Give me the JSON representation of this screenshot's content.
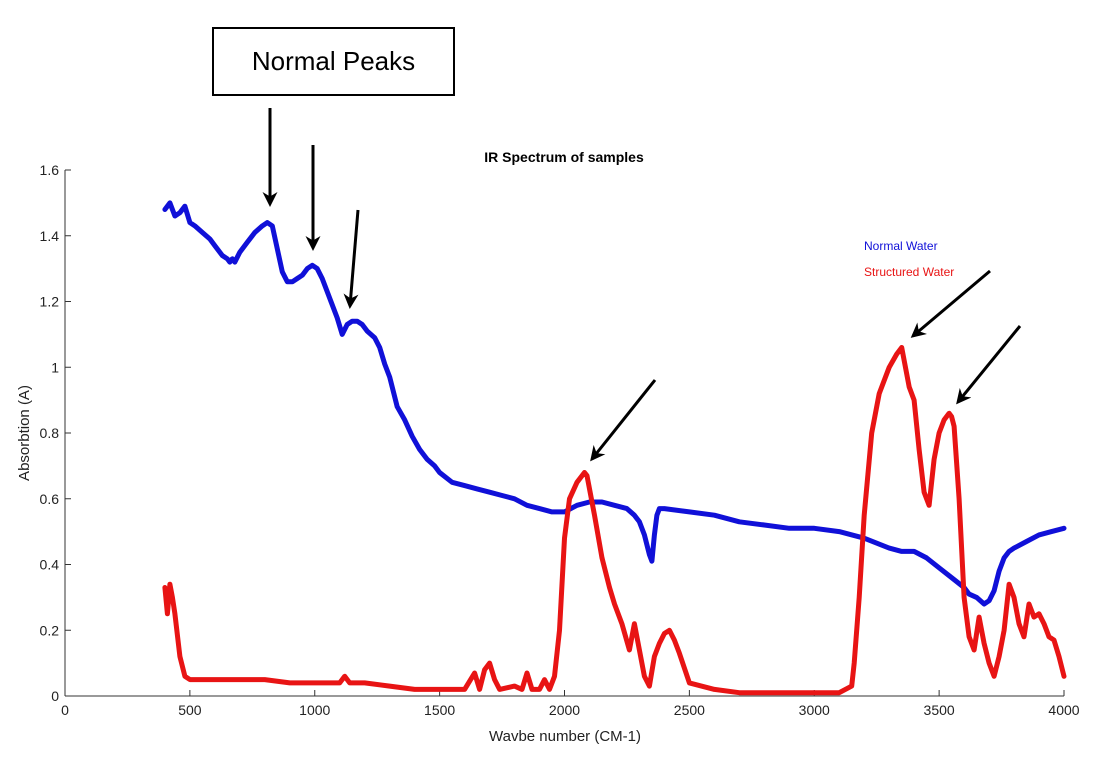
{
  "chart_data": {
    "type": "line",
    "title": "IR Spectrum of samples",
    "xlabel": "Wavbe number (CM-1)",
    "ylabel": "Absorbtion (A)",
    "xlim": [
      0,
      4000
    ],
    "ylim": [
      0,
      1.6
    ],
    "xticks": [
      "0",
      "500",
      "1000",
      "1500",
      "2000",
      "2500",
      "3000",
      "3500",
      "4000"
    ],
    "yticks": [
      "0",
      "0.2",
      "0.4",
      "0.6",
      "0.8",
      "1",
      "1.2",
      "1.4",
      "1.6"
    ],
    "grid": false,
    "legend_position": "right",
    "series": [
      {
        "name": "Normal Water",
        "color": "#1010d8",
        "x": [
          400,
          420,
          440,
          460,
          480,
          500,
          520,
          550,
          580,
          600,
          630,
          650,
          660,
          670,
          680,
          700,
          730,
          760,
          790,
          810,
          830,
          850,
          870,
          890,
          910,
          930,
          950,
          970,
          990,
          1010,
          1030,
          1050,
          1070,
          1090,
          1110,
          1130,
          1150,
          1170,
          1190,
          1210,
          1240,
          1260,
          1280,
          1300,
          1330,
          1360,
          1390,
          1420,
          1450,
          1480,
          1500,
          1550,
          1600,
          1650,
          1700,
          1750,
          1800,
          1850,
          1900,
          1950,
          2000,
          2050,
          2100,
          2150,
          2200,
          2250,
          2280,
          2300,
          2320,
          2340,
          2350,
          2360,
          2370,
          2380,
          2400,
          2500,
          2600,
          2700,
          2800,
          2900,
          3000,
          3100,
          3200,
          3300,
          3350,
          3400,
          3450,
          3500,
          3550,
          3600,
          3620,
          3650,
          3680,
          3700,
          3720,
          3740,
          3760,
          3780,
          3800,
          3850,
          3900,
          3950,
          4000
        ],
        "y": [
          1.48,
          1.5,
          1.46,
          1.47,
          1.49,
          1.44,
          1.43,
          1.41,
          1.39,
          1.37,
          1.34,
          1.33,
          1.32,
          1.33,
          1.32,
          1.35,
          1.38,
          1.41,
          1.43,
          1.44,
          1.43,
          1.36,
          1.29,
          1.26,
          1.26,
          1.27,
          1.28,
          1.3,
          1.31,
          1.3,
          1.27,
          1.23,
          1.19,
          1.15,
          1.1,
          1.13,
          1.14,
          1.14,
          1.13,
          1.11,
          1.09,
          1.06,
          1.01,
          0.97,
          0.88,
          0.84,
          0.79,
          0.75,
          0.72,
          0.7,
          0.68,
          0.65,
          0.64,
          0.63,
          0.62,
          0.61,
          0.6,
          0.58,
          0.57,
          0.56,
          0.56,
          0.58,
          0.59,
          0.59,
          0.58,
          0.57,
          0.55,
          0.53,
          0.49,
          0.43,
          0.41,
          0.49,
          0.55,
          0.57,
          0.57,
          0.56,
          0.55,
          0.53,
          0.52,
          0.51,
          0.51,
          0.5,
          0.48,
          0.45,
          0.44,
          0.44,
          0.42,
          0.39,
          0.36,
          0.33,
          0.31,
          0.3,
          0.28,
          0.29,
          0.32,
          0.38,
          0.42,
          0.44,
          0.45,
          0.47,
          0.49,
          0.5,
          0.51
        ]
      },
      {
        "name": "Structured Water",
        "color": "#e81414",
        "x": [
          400,
          410,
          420,
          430,
          440,
          460,
          480,
          500,
          550,
          600,
          700,
          800,
          900,
          1000,
          1100,
          1120,
          1140,
          1150,
          1200,
          1300,
          1400,
          1500,
          1600,
          1640,
          1660,
          1680,
          1700,
          1720,
          1740,
          1800,
          1830,
          1850,
          1870,
          1900,
          1920,
          1940,
          1960,
          1980,
          2000,
          2020,
          2050,
          2080,
          2090,
          2100,
          2120,
          2150,
          2180,
          2200,
          2230,
          2260,
          2280,
          2300,
          2320,
          2340,
          2360,
          2380,
          2400,
          2420,
          2440,
          2460,
          2500,
          2600,
          2700,
          2800,
          2900,
          3000,
          3100,
          3150,
          3160,
          3180,
          3200,
          3230,
          3260,
          3300,
          3330,
          3350,
          3360,
          3380,
          3400,
          3420,
          3440,
          3460,
          3480,
          3500,
          3520,
          3540,
          3550,
          3560,
          3580,
          3600,
          3620,
          3640,
          3660,
          3680,
          3700,
          3720,
          3740,
          3760,
          3780,
          3800,
          3820,
          3840,
          3860,
          3880,
          3900,
          3920,
          3940,
          3960,
          3980,
          4000
        ],
        "y": [
          0.33,
          0.25,
          0.34,
          0.3,
          0.25,
          0.12,
          0.06,
          0.05,
          0.05,
          0.05,
          0.05,
          0.05,
          0.04,
          0.04,
          0.04,
          0.06,
          0.04,
          0.04,
          0.04,
          0.03,
          0.02,
          0.02,
          0.02,
          0.07,
          0.02,
          0.08,
          0.1,
          0.05,
          0.02,
          0.03,
          0.02,
          0.07,
          0.02,
          0.02,
          0.05,
          0.02,
          0.06,
          0.2,
          0.48,
          0.6,
          0.65,
          0.68,
          0.67,
          0.63,
          0.55,
          0.42,
          0.33,
          0.28,
          0.22,
          0.14,
          0.22,
          0.14,
          0.06,
          0.03,
          0.12,
          0.16,
          0.19,
          0.2,
          0.17,
          0.13,
          0.04,
          0.02,
          0.01,
          0.01,
          0.01,
          0.01,
          0.01,
          0.03,
          0.1,
          0.3,
          0.55,
          0.8,
          0.92,
          1.0,
          1.04,
          1.06,
          1.02,
          0.94,
          0.9,
          0.75,
          0.62,
          0.58,
          0.72,
          0.8,
          0.84,
          0.86,
          0.85,
          0.82,
          0.6,
          0.3,
          0.18,
          0.14,
          0.24,
          0.16,
          0.1,
          0.06,
          0.12,
          0.2,
          0.34,
          0.3,
          0.22,
          0.18,
          0.28,
          0.24,
          0.25,
          0.22,
          0.18,
          0.17,
          0.12,
          0.06
        ]
      }
    ],
    "annotations": {
      "callout_text": "Normal Peaks"
    }
  }
}
